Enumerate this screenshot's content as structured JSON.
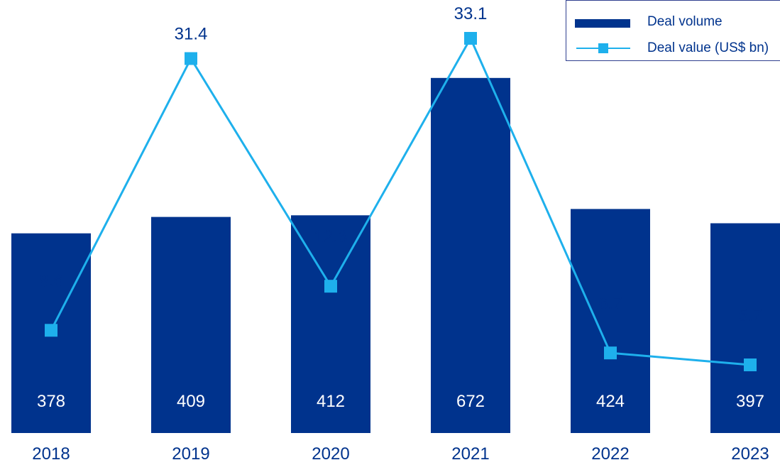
{
  "chart_data": {
    "type": "bar",
    "categories": [
      "2018",
      "2019",
      "2020",
      "2021",
      "2022",
      "2023"
    ],
    "series": [
      {
        "name": "Deal volume",
        "type": "bar",
        "values": [
          378,
          409,
          412,
          672,
          424,
          397
        ],
        "color": "#00338d",
        "label_color": "#ffffff"
      },
      {
        "name": "Deal value (US$ bn)",
        "type": "line",
        "values": [
          8.6,
          31.4,
          12.3,
          33.1,
          6.7,
          5.7
        ],
        "color": "#1eb0ec",
        "marker": "square",
        "label_color": "#00338d"
      }
    ],
    "grid": false,
    "legend_position": "top-right",
    "text_color": "#00338d"
  },
  "legend": {
    "items": [
      {
        "label": "Deal volume",
        "kind": "bar"
      },
      {
        "label": "Deal value (US$ bn)",
        "kind": "line"
      }
    ]
  }
}
